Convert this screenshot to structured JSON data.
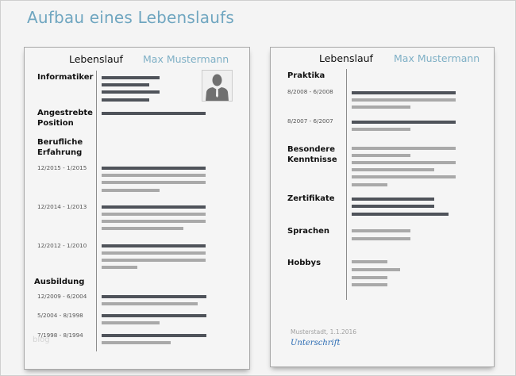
{
  "title": "Aufbau eines Lebenslaufs",
  "watermark": "blog",
  "page1": {
    "heading": "Lebenslauf",
    "name": "Max Mustermann",
    "photo_icon": "person-silhouette-icon",
    "sections": {
      "informatiker": "Informatiker",
      "angestrebte": "Angestrebte",
      "position": "Position",
      "berufliche": "Berufliche",
      "erfahrung": "Erfahrung",
      "ausbildung": "Ausbildung"
    },
    "dates": [
      "12/2015 - 1/2015",
      "12/2014 - 1/2013",
      "12/2012 - 1/2010",
      "12/2009 - 6/2004",
      "5/2004 - 8/1998",
      "7/1998 - 8/1994"
    ]
  },
  "page2": {
    "heading": "Lebenslauf",
    "name": "Max Mustermann",
    "sections": {
      "praktika": "Praktika",
      "besondere": "Besondere",
      "kenntnisse": "Kenntnisse",
      "zertifikate": "Zertifikate",
      "sprachen": "Sprachen",
      "hobbys": "Hobbys"
    },
    "dates": [
      "8/2008 - 6/2008",
      "8/2007 - 6/2007"
    ],
    "place_date": "Musterstadt, 1.1.2016",
    "signature": "Unterschrift"
  },
  "colors": {
    "title": "#6fa6c0",
    "dark_bar": "#4f535a",
    "light_bar": "#a9a9a9",
    "signature": "#2a6bb3"
  }
}
